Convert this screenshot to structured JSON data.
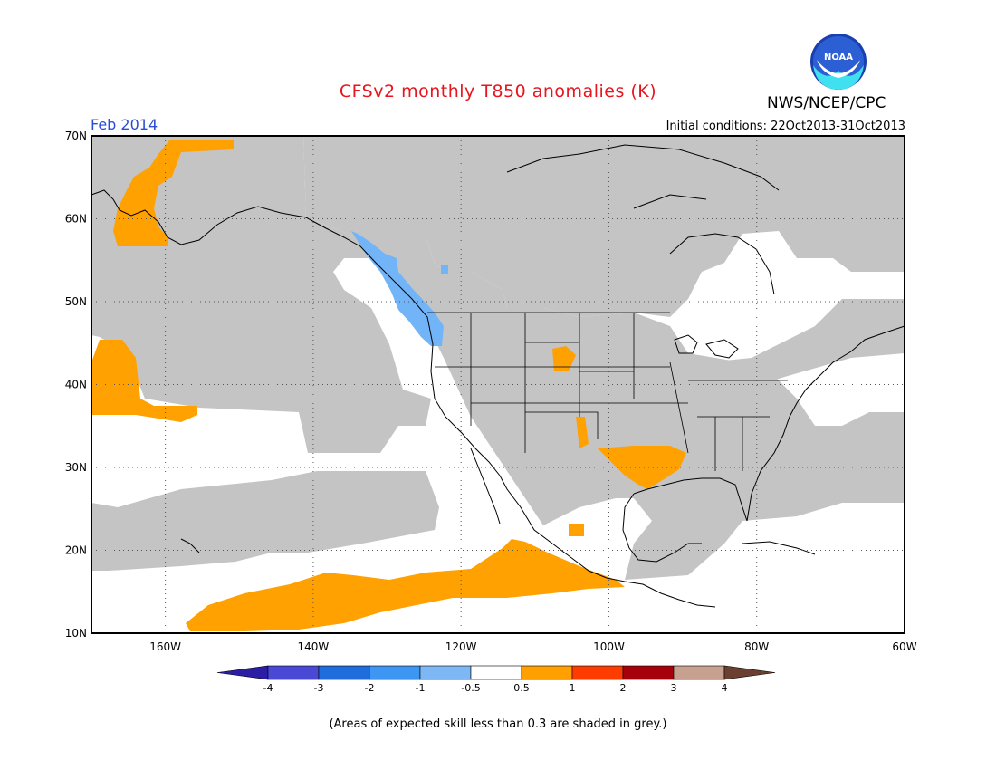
{
  "title": "CFSv2 monthly T850 anomalies (K)",
  "agency": "NWS/NCEP/CPC",
  "logo_text": "NOAA",
  "month_label": "Feb 2014",
  "initial_conditions": "Initial conditions: 22Oct2013-31Oct2013",
  "footnote": "(Areas of expected skill less than 0.3 are shaded in grey.)",
  "colors": {
    "title": "#e8141e",
    "month": "#2a4bd7",
    "grey": "#c4c4c4",
    "warm": "#ffa100",
    "cool": "#72b4f8",
    "land_line": "#000000"
  },
  "map": {
    "lon_labels": [
      "160W",
      "140W",
      "120W",
      "100W",
      "80W",
      "60W"
    ],
    "lat_labels": [
      "70N",
      "60N",
      "50N",
      "40N",
      "30N",
      "20N",
      "10N"
    ],
    "lon_range": [
      -170,
      -60
    ],
    "lat_range": [
      10,
      70
    ]
  },
  "colorbar": {
    "labels": [
      "-4",
      "-3",
      "-2",
      "-1",
      "-0.5",
      "0.5",
      "1",
      "2",
      "3",
      "4"
    ],
    "colors": [
      "#2b1da6",
      "#4a49d6",
      "#1f6ddc",
      "#3d97f2",
      "#7db8f5",
      "#ffffff",
      "#ffa000",
      "#ff3c00",
      "#a6000d",
      "#c8a090",
      "#6b4030"
    ]
  }
}
